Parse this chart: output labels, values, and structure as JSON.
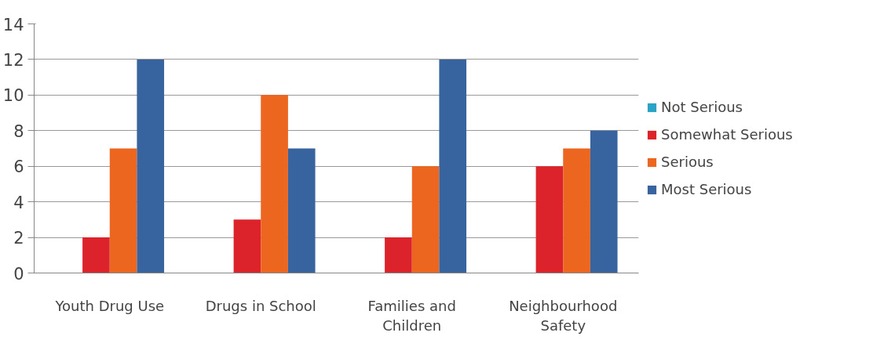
{
  "chart_data": {
    "type": "bar",
    "categories": [
      "Youth Drug Use",
      "Drugs in School",
      "Families and Children",
      "Neighbourhood Safety"
    ],
    "series": [
      {
        "name": "Not Serious",
        "color": "#2ba3c4",
        "values": [
          0,
          0,
          0,
          0
        ]
      },
      {
        "name": "Somewhat Serious",
        "color": "#dc222b",
        "values": [
          2,
          3,
          2,
          6
        ]
      },
      {
        "name": "Serious",
        "color": "#ec6620",
        "values": [
          7,
          10,
          6,
          7
        ]
      },
      {
        "name": "Most Serious",
        "color": "#37639e",
        "values": [
          12,
          7,
          12,
          8
        ]
      }
    ],
    "ylim": [
      0,
      14
    ],
    "yticks": [
      0,
      2,
      4,
      6,
      8,
      10,
      12,
      14
    ],
    "grid": "y",
    "legend": "right"
  }
}
